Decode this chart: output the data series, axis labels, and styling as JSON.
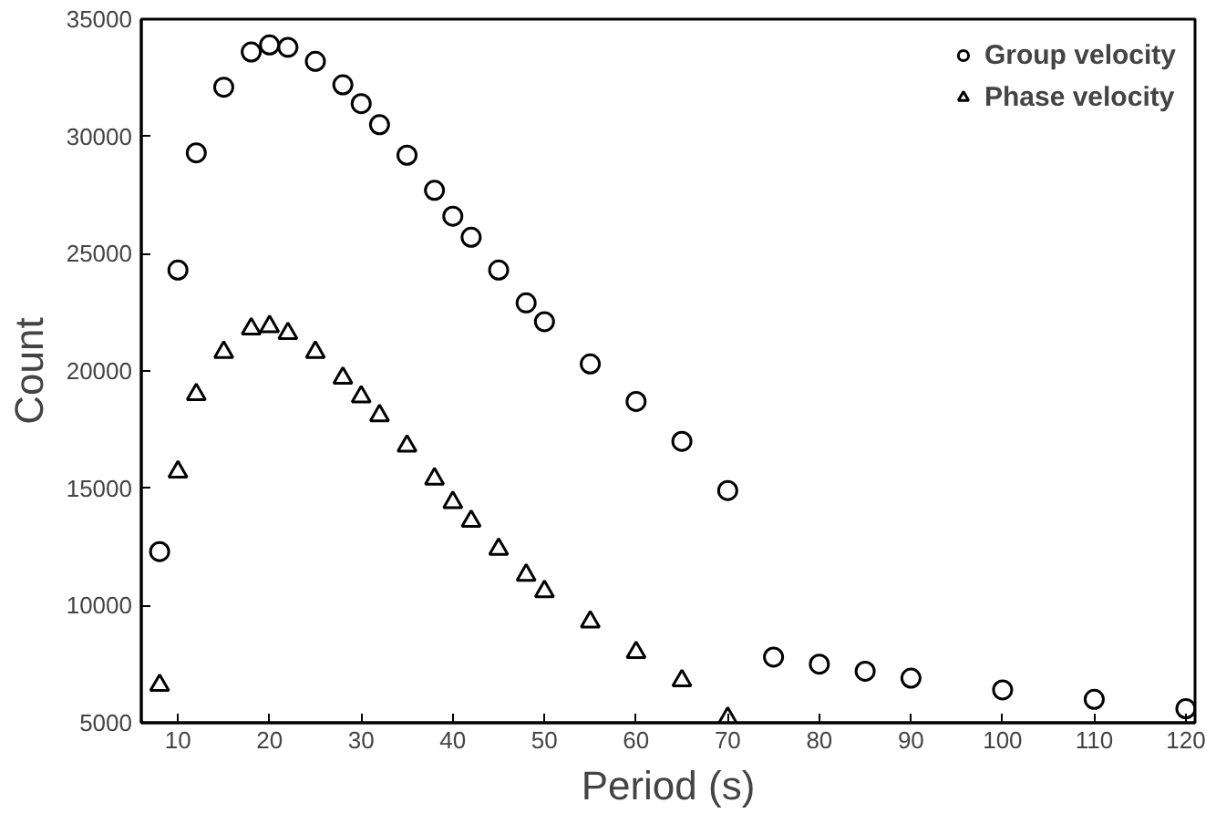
{
  "chart_data": {
    "type": "scatter",
    "xlabel": "Period (s)",
    "ylabel": "Count",
    "xlim": [
      6,
      121
    ],
    "ylim": [
      5000,
      35000
    ],
    "xticks": [
      10,
      20,
      30,
      40,
      50,
      60,
      70,
      80,
      90,
      100,
      110,
      120
    ],
    "yticks": [
      5000,
      10000,
      15000,
      20000,
      25000,
      30000,
      35000
    ],
    "grid": false,
    "legend": "top right",
    "series": [
      {
        "name": "Group velocity",
        "color": "#000000",
        "marker": "circle",
        "x": [
          8,
          10,
          12,
          15,
          18,
          20,
          22,
          25,
          28,
          30,
          32,
          35,
          38,
          40,
          42,
          45,
          48,
          50,
          55,
          60,
          65,
          70,
          75,
          80,
          85,
          90,
          100,
          110,
          120
        ],
        "values": [
          12300,
          24300,
          29300,
          32100,
          33600,
          33900,
          33800,
          33200,
          32200,
          31400,
          30500,
          29200,
          27700,
          26600,
          25700,
          24300,
          22900,
          22100,
          20300,
          18700,
          17000,
          14900,
          7800,
          7500,
          7200,
          6900,
          6400,
          6000,
          5600
        ]
      },
      {
        "name": "Phase velocity",
        "color": "#000000",
        "marker": "triangle",
        "x": [
          8,
          10,
          12,
          15,
          18,
          20,
          22,
          25,
          28,
          30,
          32,
          35,
          38,
          40,
          42,
          45,
          48,
          50,
          55,
          60,
          65,
          70
        ],
        "values": [
          6600,
          15700,
          19000,
          20800,
          21800,
          21900,
          21600,
          20800,
          19700,
          18900,
          18100,
          16800,
          15400,
          14400,
          13600,
          12400,
          11300,
          10600,
          9300,
          8000,
          6800,
          5200
        ]
      }
    ]
  }
}
